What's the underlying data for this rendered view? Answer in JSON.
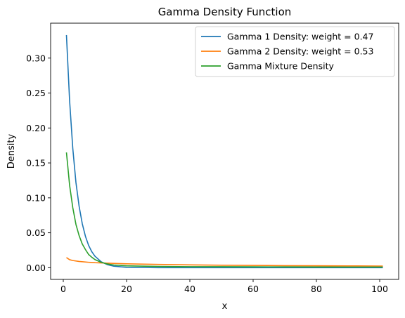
{
  "chart_data": {
    "type": "line",
    "title": "Gamma Density Function",
    "xlabel": "x",
    "ylabel": "Density",
    "xlim": [
      -4,
      106
    ],
    "ylim": [
      -0.0167,
      0.35
    ],
    "xticks": [
      0,
      20,
      40,
      60,
      80,
      100
    ],
    "yticks": [
      0.0,
      0.05,
      0.1,
      0.15,
      0.2,
      0.25,
      0.3
    ],
    "ytick_labels": [
      "0.00",
      "0.05",
      "0.10",
      "0.15",
      "0.20",
      "0.25",
      "0.30"
    ],
    "grid": false,
    "legend_position": "top-right",
    "series": [
      {
        "name": "Gamma 1 Density: weight = 0.47",
        "color": "#1f77b4",
        "x": [
          1,
          2,
          3,
          4,
          5,
          6,
          7,
          8,
          9,
          10,
          12,
          14,
          16,
          20,
          30,
          40,
          60,
          80,
          101
        ],
        "y": [
          0.333,
          0.239,
          0.171,
          0.122,
          0.088,
          0.063,
          0.045,
          0.032,
          0.023,
          0.0165,
          0.0085,
          0.0043,
          0.0022,
          0.0006,
          0.0,
          0.0,
          0.0,
          0.0,
          0.0
        ]
      },
      {
        "name": "Gamma 2 Density: weight = 0.53",
        "color": "#ff7f0e",
        "x": [
          1,
          2,
          3,
          5,
          8,
          10,
          15,
          20,
          30,
          40,
          50,
          60,
          70,
          80,
          90,
          101
        ],
        "y": [
          0.0145,
          0.0115,
          0.0103,
          0.009,
          0.0078,
          0.0072,
          0.0063,
          0.0056,
          0.0047,
          0.0041,
          0.0036,
          0.0033,
          0.003,
          0.0028,
          0.0026,
          0.0024
        ]
      },
      {
        "name": "Gamma Mixture Density",
        "color": "#2ca02c",
        "x": [
          1,
          2,
          3,
          4,
          5,
          6,
          7,
          8,
          9,
          10,
          12,
          14,
          16,
          20,
          30,
          40,
          50,
          60,
          70,
          80,
          90,
          101
        ],
        "y": [
          0.165,
          0.118,
          0.086,
          0.062,
          0.046,
          0.034,
          0.026,
          0.019,
          0.015,
          0.0117,
          0.0077,
          0.0053,
          0.0039,
          0.0027,
          0.0018,
          0.0015,
          0.0014,
          0.0013,
          0.0012,
          0.0011,
          0.001,
          0.001
        ]
      }
    ]
  }
}
